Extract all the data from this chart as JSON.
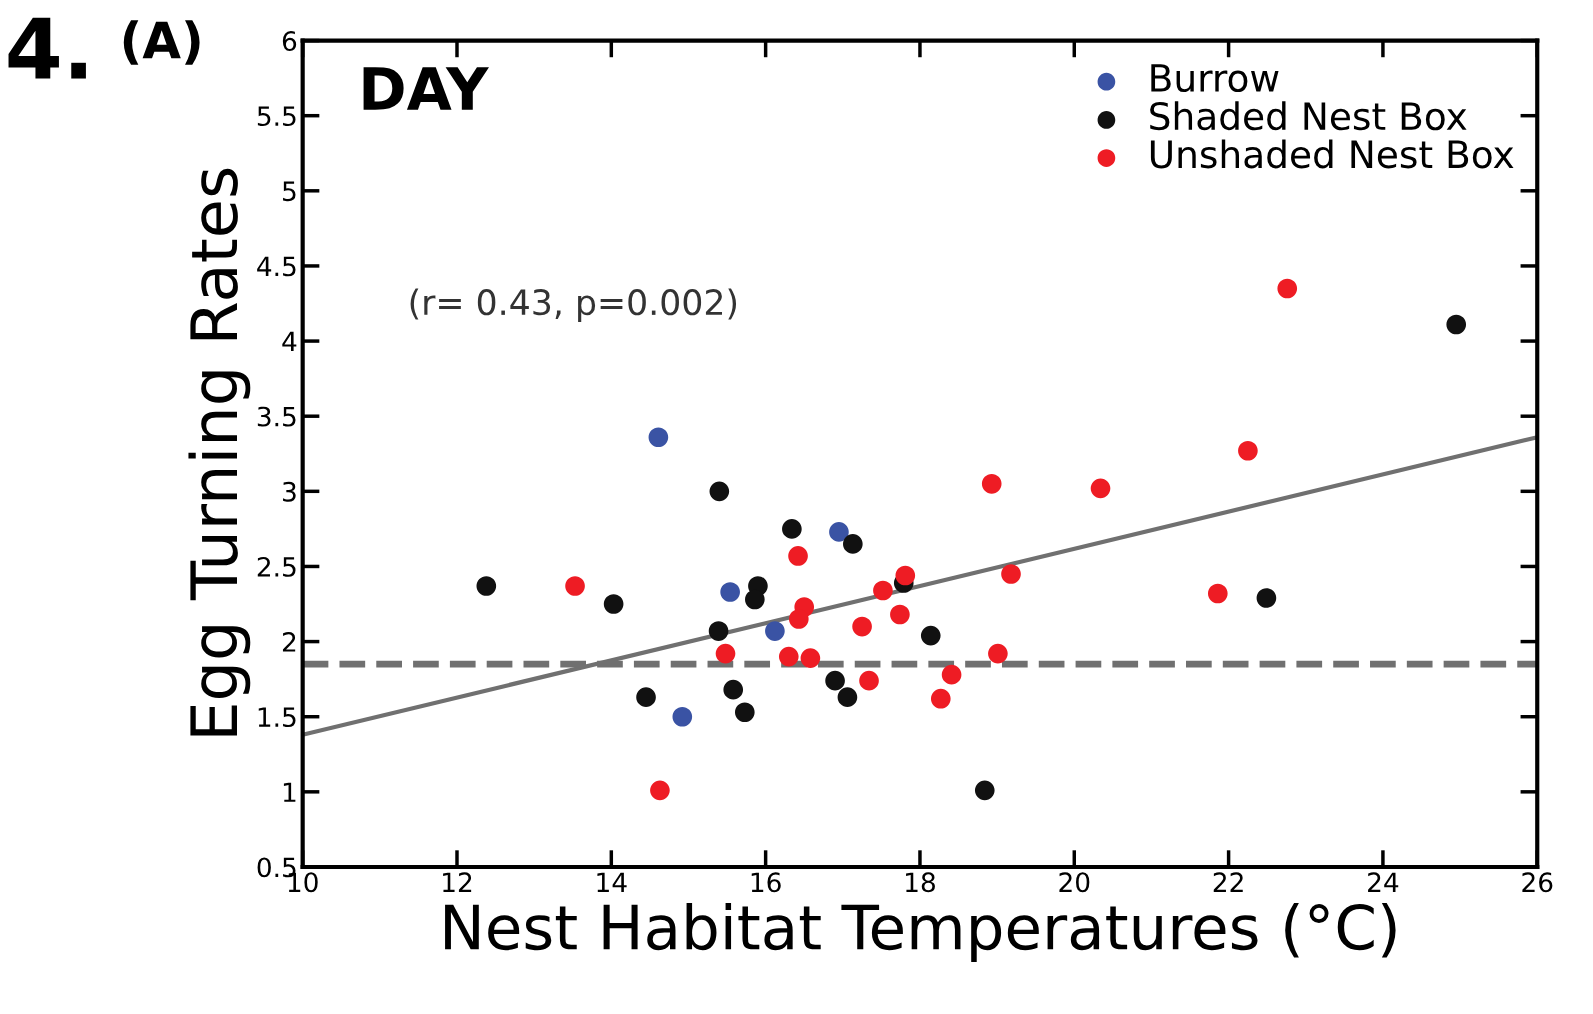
{
  "chart_data": {
    "type": "scatter",
    "xlabel": "Nest Habitat Temperatures (°C)",
    "ylabel": "Egg Turning Rates",
    "annotations": [
      "4.",
      "(A)",
      "DAY",
      "(r= 0.43, p=0.002)"
    ],
    "xlim": [
      10,
      26
    ],
    "xticks": [
      10,
      12,
      14,
      16,
      18,
      20,
      22,
      24,
      26
    ],
    "ylim": [
      0.5,
      6
    ],
    "yticks": [
      0.5,
      1,
      1.5,
      2,
      2.5,
      3,
      3.5,
      4,
      4.5,
      5,
      5.5,
      6
    ],
    "grid": false,
    "legend": "top right",
    "marker": "circle",
    "series": [
      {
        "name": "Burrow",
        "color": "#3a53a4",
        "x": [
          14.61,
          16.95,
          15.54,
          16.12,
          14.92
        ],
        "values": [
          3.36,
          2.73,
          2.33,
          2.07,
          1.5
        ]
      },
      {
        "name": "Shaded Nest Box",
        "color": "#111111",
        "x": [
          12.38,
          14.03,
          15.4,
          16.34,
          17.13,
          15.9,
          15.86,
          15.39,
          14.45,
          15.58,
          15.73,
          16.9,
          17.06,
          17.79,
          18.14,
          18.84,
          22.49,
          24.95
        ],
        "values": [
          2.37,
          2.25,
          3.0,
          2.75,
          2.65,
          2.37,
          2.28,
          2.07,
          1.63,
          1.68,
          1.53,
          1.74,
          1.63,
          2.39,
          2.04,
          1.01,
          2.29,
          4.11
        ]
      },
      {
        "name": "Unshaded Nest Box",
        "color": "#ee1c24",
        "x": [
          13.53,
          14.63,
          15.48,
          16.42,
          16.5,
          16.43,
          16.3,
          16.58,
          17.25,
          17.34,
          17.52,
          17.74,
          17.81,
          18.27,
          18.41,
          18.93,
          19.01,
          19.18,
          20.34,
          21.86,
          22.25,
          22.76
        ],
        "values": [
          2.37,
          1.01,
          1.92,
          2.57,
          2.23,
          2.15,
          1.9,
          1.89,
          2.1,
          1.74,
          2.34,
          2.18,
          2.44,
          1.62,
          1.78,
          3.05,
          1.92,
          2.45,
          3.02,
          2.32,
          3.27,
          4.35
        ]
      },
      {
        "type": "line",
        "color": "#707070",
        "line_style": "solid",
        "marker": "none",
        "x": [
          10,
          26
        ],
        "values": [
          1.38,
          3.36
        ]
      }
    ],
    "ref_lines": [
      {
        "axis": "y",
        "value": 1.85,
        "color": "#707070",
        "line_style": "dashed"
      }
    ]
  }
}
